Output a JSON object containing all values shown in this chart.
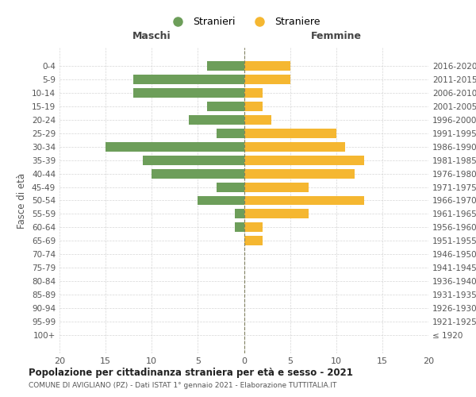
{
  "age_groups": [
    "100+",
    "95-99",
    "90-94",
    "85-89",
    "80-84",
    "75-79",
    "70-74",
    "65-69",
    "60-64",
    "55-59",
    "50-54",
    "45-49",
    "40-44",
    "35-39",
    "30-34",
    "25-29",
    "20-24",
    "15-19",
    "10-14",
    "5-9",
    "0-4"
  ],
  "birth_years": [
    "≤ 1920",
    "1921-1925",
    "1926-1930",
    "1931-1935",
    "1936-1940",
    "1941-1945",
    "1946-1950",
    "1951-1955",
    "1956-1960",
    "1961-1965",
    "1966-1970",
    "1971-1975",
    "1976-1980",
    "1981-1985",
    "1986-1990",
    "1991-1995",
    "1996-2000",
    "2001-2005",
    "2006-2010",
    "2011-2015",
    "2016-2020"
  ],
  "males": [
    0,
    0,
    0,
    0,
    0,
    0,
    0,
    0,
    1,
    1,
    5,
    3,
    10,
    11,
    15,
    3,
    6,
    4,
    12,
    12,
    4
  ],
  "females": [
    0,
    0,
    0,
    0,
    0,
    0,
    0,
    2,
    2,
    7,
    13,
    7,
    12,
    13,
    11,
    10,
    3,
    2,
    2,
    5,
    5
  ],
  "male_color": "#6d9e5a",
  "female_color": "#f5b731",
  "center_line_color": "#808060",
  "grid_color": "#cccccc",
  "background_color": "#ffffff",
  "title": "Popolazione per cittadinanza straniera per età e sesso - 2021",
  "subtitle": "COMUNE DI AVIGLIANO (PZ) - Dati ISTAT 1° gennaio 2021 - Elaborazione TUTTITALIA.IT",
  "xlabel_left": "Maschi",
  "xlabel_right": "Femmine",
  "ylabel_left": "Fasce di età",
  "legend_male": "Stranieri",
  "legend_female": "Straniere",
  "xlim": 20
}
